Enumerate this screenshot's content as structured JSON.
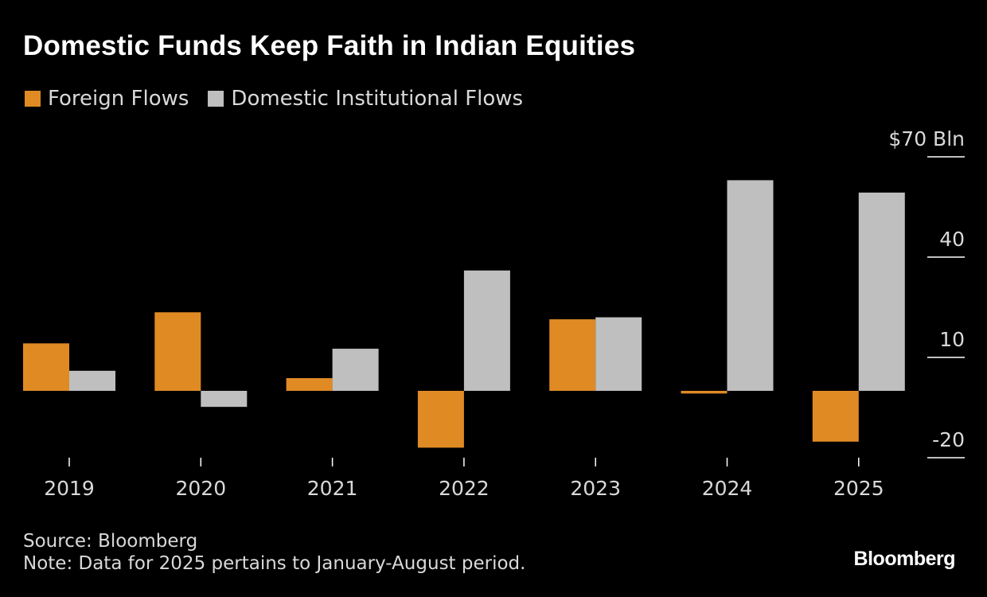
{
  "header": {
    "title": "Domestic Funds Keep Faith in Indian Equities"
  },
  "legend": [
    {
      "label": "Foreign Flows",
      "color": "#e08a24"
    },
    {
      "label": "Domestic Institutional Flows",
      "color": "#bfbfbf"
    }
  ],
  "chart_data": {
    "type": "bar",
    "title": "Domestic Funds Keep Faith in Indian Equities",
    "categories": [
      "2019",
      "2020",
      "2021",
      "2022",
      "2023",
      "2024",
      "2025"
    ],
    "series": [
      {
        "name": "Foreign Flows",
        "color": "#e08a24",
        "values": [
          14.2,
          23.5,
          3.8,
          -17.0,
          21.4,
          -0.8,
          -15.2
        ]
      },
      {
        "name": "Domestic Institutional Flows",
        "color": "#bfbfbf",
        "values": [
          6.0,
          -4.8,
          12.6,
          36.0,
          22.0,
          63.0,
          59.3
        ]
      }
    ],
    "unit_prefix": "$",
    "unit_suffix": "Bln",
    "ylim": [
      -20,
      70
    ],
    "yticks": [
      -20,
      10,
      40,
      70
    ],
    "ytick_labels": [
      "-20",
      "10",
      "40",
      "70"
    ],
    "ylabel": "",
    "xlabel": "",
    "grid": false
  },
  "footer": {
    "source": "Source: Bloomberg",
    "note": "Note: Data for 2025 pertains to January-August period.",
    "brand": "Bloomberg"
  }
}
